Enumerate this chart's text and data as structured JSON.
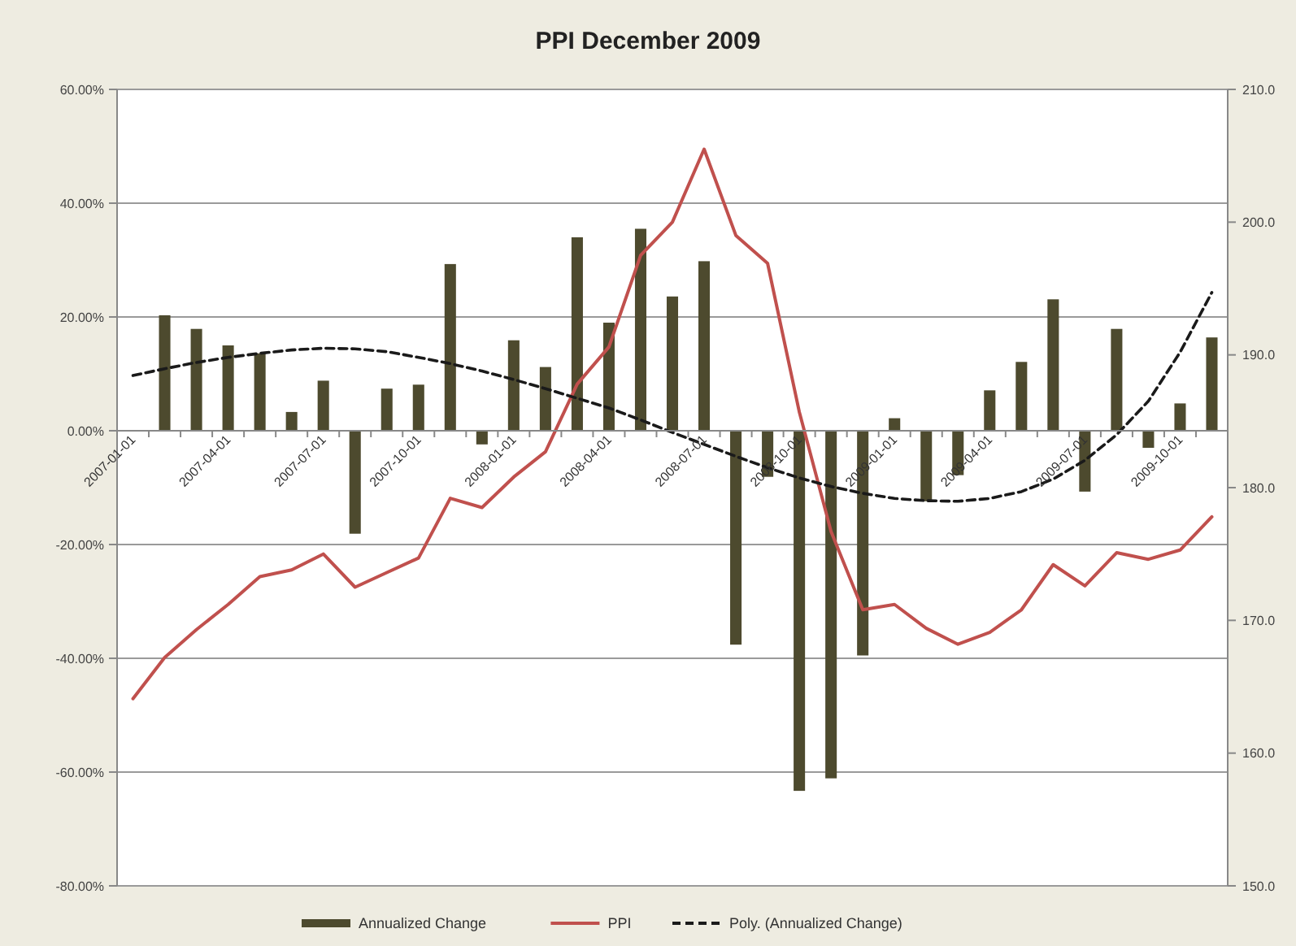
{
  "chart_data": {
    "type": "bar",
    "title": "PPI December 2009",
    "categories": [
      "2007-01-01",
      null,
      null,
      "2007-04-01",
      null,
      null,
      "2007-07-01",
      null,
      null,
      "2007-10-01",
      null,
      null,
      "2008-01-01",
      null,
      null,
      "2008-04-01",
      null,
      null,
      "2008-07-01",
      null,
      null,
      "2008-10-01",
      null,
      null,
      "2009-01-01",
      null,
      null,
      "2009-04-01",
      null,
      null,
      "2009-07-01",
      null,
      null,
      "2009-10-01",
      null
    ],
    "series": [
      {
        "name": "Annualized Change",
        "color": "#4d4a2e",
        "values": [
          null,
          20.3,
          17.9,
          15.0,
          13.6,
          3.3,
          8.8,
          -18.1,
          7.4,
          8.1,
          29.3,
          -2.4,
          15.9,
          11.2,
          34.0,
          19.0,
          35.5,
          23.6,
          29.8,
          -37.6,
          -8.1,
          -63.3,
          -61.1,
          -39.5,
          2.2,
          -12.4,
          -7.8,
          7.1,
          12.1,
          23.1,
          -10.7,
          17.9,
          -3.0,
          4.8,
          16.4
        ]
      },
      {
        "name": "PPI",
        "type": "line",
        "axis": "y2",
        "color": "#c0504d",
        "values": [
          164.1,
          167.2,
          169.3,
          171.2,
          173.3,
          173.8,
          175.0,
          172.5,
          173.6,
          174.7,
          179.2,
          178.5,
          180.8,
          182.7,
          187.8,
          190.6,
          197.5,
          200.0,
          205.5,
          199.0,
          196.9,
          185.7,
          176.7,
          170.8,
          171.2,
          169.4,
          168.2,
          169.1,
          170.8,
          174.2,
          172.6,
          175.1,
          174.6,
          175.3,
          177.8
        ]
      },
      {
        "name": "Poly. (Annualized Change)",
        "type": "line",
        "line_style": "dashed",
        "color": "#1a1a1a",
        "values": [
          9.7,
          10.9,
          12.0,
          12.9,
          13.6,
          14.2,
          14.5,
          14.4,
          13.9,
          12.9,
          11.8,
          10.5,
          9.0,
          7.4,
          5.7,
          4.0,
          1.9,
          -0.3,
          -2.4,
          -4.5,
          -6.5,
          -8.3,
          -9.8,
          -11.0,
          -11.9,
          -12.3,
          -12.4,
          -11.9,
          -10.7,
          -8.5,
          -5.2,
          -0.7,
          5.2,
          13.8,
          24.3
        ]
      }
    ],
    "ylim": [
      -80,
      60
    ],
    "yticks": [
      {
        "value": -80,
        "label": "-80.00%"
      },
      {
        "value": -60,
        "label": "-60.00%"
      },
      {
        "value": -40,
        "label": "-40.00%"
      },
      {
        "value": -20,
        "label": "-20.00%"
      },
      {
        "value": 0,
        "label": "0.00%"
      },
      {
        "value": 20,
        "label": "20.00%"
      },
      {
        "value": 40,
        "label": "40.00%"
      },
      {
        "value": 60,
        "label": "60.00%"
      }
    ],
    "y2lim": [
      150,
      210
    ],
    "y2ticks": [
      {
        "value": 150,
        "label": "150.0"
      },
      {
        "value": 160,
        "label": "160.0"
      },
      {
        "value": 170,
        "label": "170.0"
      },
      {
        "value": 180,
        "label": "180.0"
      },
      {
        "value": 190,
        "label": "190.0"
      },
      {
        "value": 200,
        "label": "200.0"
      },
      {
        "value": 210,
        "label": "210.0"
      }
    ],
    "grid": "y",
    "legend": "bottom"
  }
}
